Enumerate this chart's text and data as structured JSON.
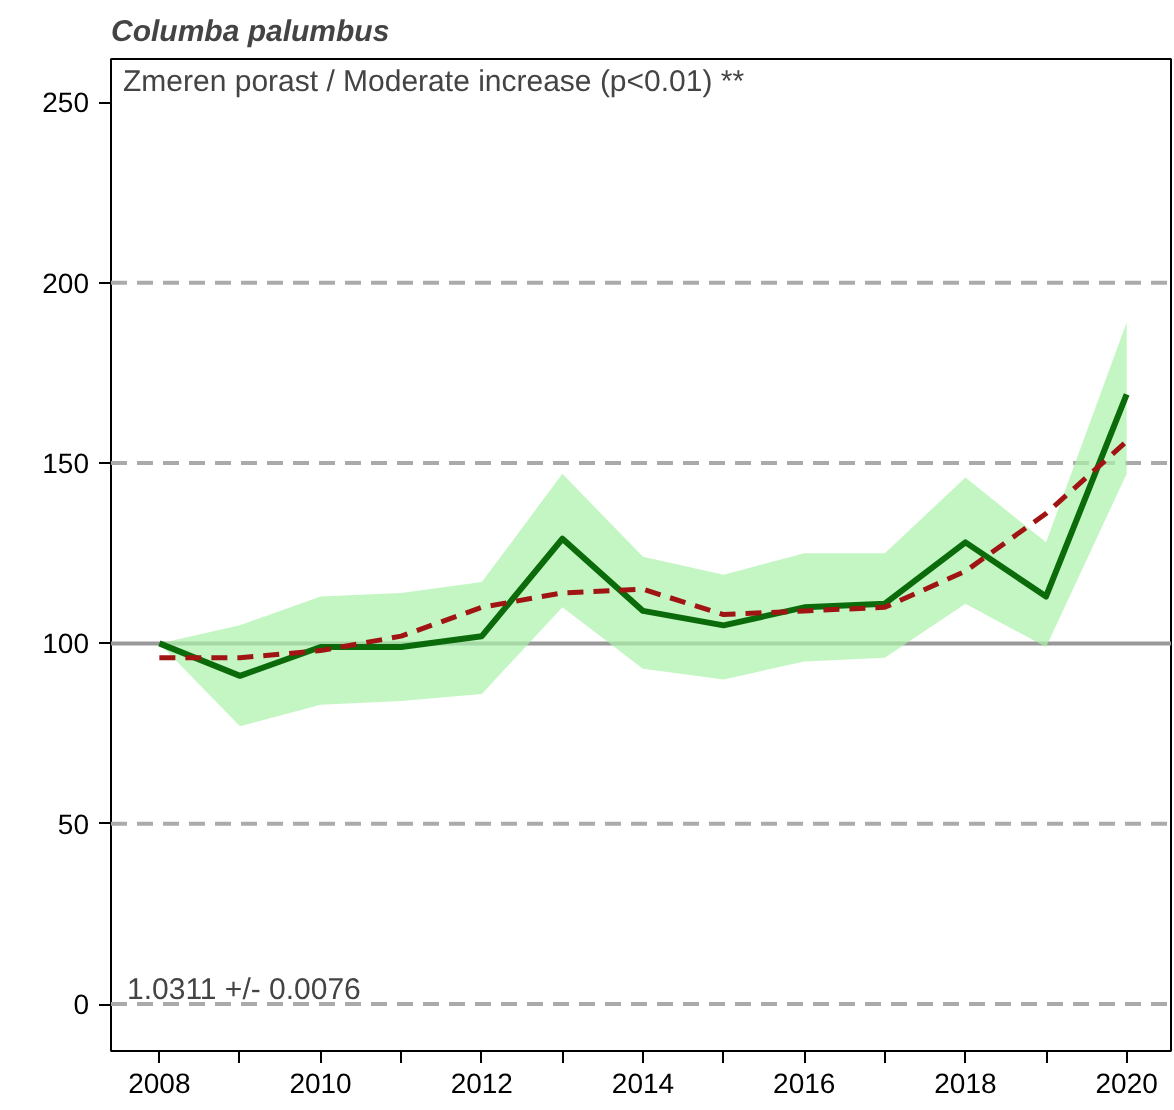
{
  "chart_data": {
    "type": "line",
    "title": "Columba palumbus",
    "annotations": [
      "Zmeren porast / Moderate increase (p<0.01) **",
      "1.0311 +/- 0.0076"
    ],
    "x": [
      2008,
      2009,
      2010,
      2011,
      2012,
      2013,
      2014,
      2015,
      2016,
      2017,
      2018,
      2019,
      2020
    ],
    "series": [
      {
        "color": "#0b6b0b",
        "line_style": "solid",
        "values": [
          100,
          91,
          99,
          99,
          102,
          129,
          109,
          105,
          110,
          111,
          128,
          113,
          169
        ],
        "lower": [
          100,
          77,
          83,
          84,
          86,
          110,
          93,
          90,
          95,
          96,
          111,
          99,
          147
        ],
        "upper": [
          100,
          105,
          113,
          114,
          117,
          147,
          124,
          119,
          125,
          125,
          146,
          128,
          189
        ]
      },
      {
        "color": "#a01414",
        "line_style": "dashed",
        "values": [
          96,
          96,
          98,
          102,
          110,
          114,
          115,
          108,
          109,
          110,
          120,
          136,
          156
        ]
      }
    ],
    "xlim": [
      2007.4,
      2020.55
    ],
    "ylim": [
      -13,
      262
    ],
    "xticks": [
      2008,
      {
        "value": 2009,
        "label": null
      },
      2010,
      {
        "value": 2011,
        "label": null
      },
      2012,
      {
        "value": 2013,
        "label": null
      },
      2014,
      {
        "value": 2015,
        "label": null
      },
      2016,
      {
        "value": 2017,
        "label": null
      },
      2018,
      {
        "value": 2019,
        "label": null
      },
      2020
    ],
    "yticks": [
      0,
      50,
      100,
      150,
      200,
      250
    ],
    "ref_lines": [
      {
        "axis": "y",
        "value": 0,
        "color": "#aaaaaa",
        "line_style": "dashed"
      },
      {
        "axis": "y",
        "value": 50,
        "color": "#aaaaaa",
        "line_style": "dashed"
      },
      {
        "axis": "y",
        "value": 100,
        "color": "#999999",
        "line_style": "solid"
      },
      {
        "axis": "y",
        "value": 150,
        "color": "#aaaaaa",
        "line_style": "dashed"
      },
      {
        "axis": "y",
        "value": 200,
        "color": "#aaaaaa",
        "line_style": "dashed"
      }
    ],
    "grid": false,
    "marker": "none"
  }
}
